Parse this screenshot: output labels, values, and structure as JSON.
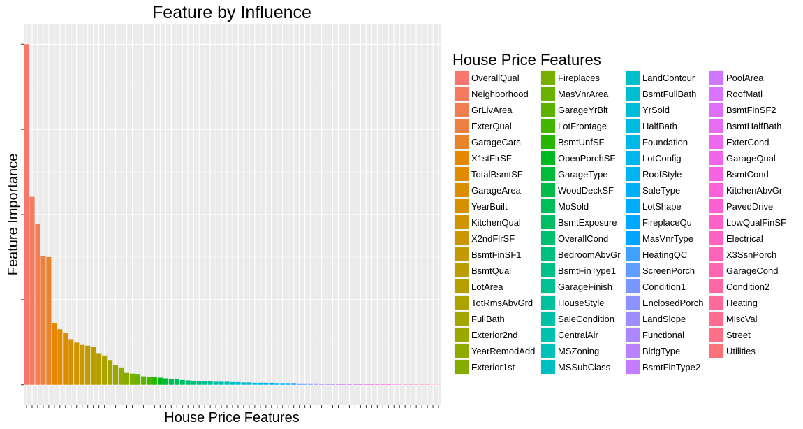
{
  "chart_data": {
    "type": "bar",
    "title": "Feature by Influence",
    "xlabel": "House Price Features",
    "ylabel": "Feature Importance",
    "legend_title": "House Price Features",
    "legend_position": "right",
    "grid": true,
    "ylim": [
      -0.06,
      1.06
    ],
    "y_ticks": [
      0,
      0.25,
      0.5,
      0.75,
      1.0
    ],
    "categories": [
      "OverallQual",
      "Neighborhood",
      "GrLivArea",
      "ExterQual",
      "GarageCars",
      "X1stFlrSF",
      "TotalBsmtSF",
      "GarageArea",
      "YearBuilt",
      "KitchenQual",
      "X2ndFlrSF",
      "BsmtFinSF1",
      "BsmtQual",
      "LotArea",
      "TotRmsAbvGrd",
      "FullBath",
      "Exterior2nd",
      "YearRemodAdd",
      "Exterior1st",
      "Fireplaces",
      "MasVnrArea",
      "GarageYrBlt",
      "LotFrontage",
      "BsmtUnfSF",
      "OpenPorchSF",
      "GarageType",
      "WoodDeckSF",
      "MoSold",
      "BsmtExposure",
      "OverallCond",
      "BedroomAbvGr",
      "BsmtFinType1",
      "GarageFinish",
      "HouseStyle",
      "SaleCondition",
      "CentralAir",
      "MSZoning",
      "MSSubClass",
      "LandContour",
      "BsmtFullBath",
      "YrSold",
      "HalfBath",
      "Foundation",
      "LotConfig",
      "RoofStyle",
      "SaleType",
      "LotShape",
      "FireplaceQu",
      "MasVnrType",
      "HeatingQC",
      "ScreenPorch",
      "Condition1",
      "EnclosedPorch",
      "LandSlope",
      "Functional",
      "BldgType",
      "BsmtFinType2",
      "PoolArea",
      "RoofMatl",
      "BsmtFinSF2",
      "BsmtHalfBath",
      "ExterCond",
      "GarageQual",
      "BsmtCond",
      "KitchenAbvGr",
      "PavedDrive",
      "LowQualFinSF",
      "Electrical",
      "X3SsnPorch",
      "GarageCond",
      "Condition2",
      "Heating",
      "MiscVal",
      "Street",
      "Utilities"
    ],
    "values": [
      1.0,
      0.552,
      0.472,
      0.378,
      0.375,
      0.18,
      0.163,
      0.152,
      0.134,
      0.124,
      0.117,
      0.115,
      0.111,
      0.093,
      0.086,
      0.073,
      0.057,
      0.051,
      0.035,
      0.033,
      0.032,
      0.025,
      0.023,
      0.022,
      0.021,
      0.019,
      0.017,
      0.016,
      0.014,
      0.013,
      0.012,
      0.011,
      0.011,
      0.01,
      0.009,
      0.009,
      0.009,
      0.008,
      0.008,
      0.007,
      0.007,
      0.006,
      0.006,
      0.006,
      0.006,
      0.005,
      0.005,
      0.005,
      0.005,
      0.004,
      0.004,
      0.004,
      0.004,
      0.003,
      0.003,
      0.003,
      0.003,
      0.003,
      0.003,
      0.002,
      0.002,
      0.002,
      0.002,
      0.002,
      0.002,
      0.002,
      0.001,
      0.001,
      0.001,
      0.001,
      0.001,
      0.001,
      0.001,
      0.0005,
      0.0003
    ]
  }
}
